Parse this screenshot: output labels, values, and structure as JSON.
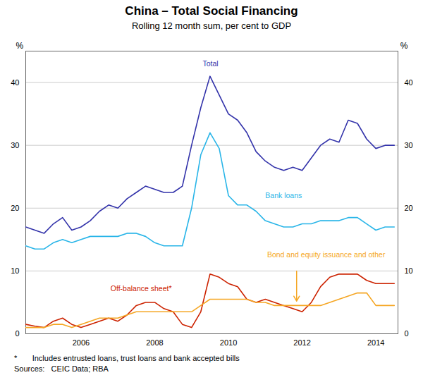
{
  "chart_data": {
    "type": "line",
    "title": "China – Total Social Financing",
    "subtitle": "Rolling 12 month sum, per cent to GDP",
    "ylabel": "%",
    "y2label": "%",
    "footnote": "*       Includes entrusted loans, trust loans and bank accepted bills",
    "sources": "Sources:   CEIC Data; RBA",
    "xlim": [
      2004.5,
      2014.6
    ],
    "xticks": [
      2006,
      2008,
      2010,
      2012,
      2014
    ],
    "ylim": [
      0,
      45
    ],
    "yticks": [
      0,
      10,
      20,
      30,
      40
    ],
    "y2lim": [
      0,
      45
    ],
    "y2ticks": [
      0,
      10,
      20,
      30,
      40
    ],
    "grid": true,
    "x": [
      2004.5,
      2004.75,
      2005.0,
      2005.25,
      2005.5,
      2005.75,
      2006.0,
      2006.25,
      2006.5,
      2006.75,
      2007.0,
      2007.25,
      2007.5,
      2007.75,
      2008.0,
      2008.25,
      2008.5,
      2008.75,
      2009.0,
      2009.25,
      2009.5,
      2009.75,
      2010.0,
      2010.25,
      2010.5,
      2010.75,
      2011.0,
      2011.25,
      2011.5,
      2011.75,
      2012.0,
      2012.25,
      2012.5,
      2012.75,
      2013.0,
      2013.25,
      2013.5,
      2013.75,
      2014.0,
      2014.25,
      2014.5
    ],
    "series": [
      {
        "name": "Total",
        "color": "#3333aa",
        "values": [
          17.0,
          16.5,
          16.0,
          17.5,
          18.5,
          16.5,
          17.0,
          18.0,
          19.5,
          20.5,
          20.0,
          21.5,
          22.5,
          23.5,
          23.0,
          22.5,
          22.5,
          23.5,
          30.0,
          36.0,
          41.0,
          38.0,
          35.0,
          34.0,
          32.0,
          29.0,
          27.5,
          26.5,
          26.0,
          26.5,
          26.0,
          28.0,
          30.0,
          31.0,
          30.5,
          34.0,
          33.5,
          31.0,
          29.5,
          30.0,
          30.0
        ]
      },
      {
        "name": "Bank loans",
        "color": "#29b5e8",
        "values": [
          14.0,
          13.5,
          13.5,
          14.5,
          15.0,
          14.5,
          15.0,
          15.5,
          15.5,
          15.5,
          15.5,
          16.0,
          16.0,
          15.5,
          14.5,
          14.0,
          14.0,
          14.0,
          20.0,
          28.5,
          32.0,
          29.5,
          22.0,
          20.5,
          20.5,
          19.5,
          18.0,
          17.5,
          17.0,
          17.0,
          17.5,
          17.5,
          18.0,
          18.0,
          18.0,
          18.5,
          18.5,
          17.5,
          16.5,
          17.0,
          17.0
        ]
      },
      {
        "name": "Off-balance sheet*",
        "color": "#cc2200",
        "values": [
          1.5,
          1.2,
          1.0,
          2.0,
          2.5,
          1.5,
          1.0,
          1.5,
          2.0,
          2.5,
          2.0,
          3.0,
          4.5,
          5.0,
          5.0,
          4.0,
          3.5,
          1.5,
          1.0,
          3.5,
          9.5,
          9.0,
          8.0,
          7.5,
          5.5,
          5.0,
          5.5,
          5.0,
          4.5,
          4.0,
          3.5,
          5.0,
          7.5,
          9.0,
          9.5,
          9.5,
          9.5,
          8.5,
          8.0,
          8.0,
          8.0
        ]
      },
      {
        "name": "Bond and equity issuance and other",
        "color": "#f5a623",
        "values": [
          1.0,
          1.0,
          1.0,
          1.5,
          1.5,
          1.0,
          1.5,
          2.0,
          2.5,
          2.5,
          2.5,
          3.0,
          3.5,
          3.5,
          3.5,
          3.5,
          3.5,
          3.5,
          3.5,
          4.5,
          5.5,
          5.5,
          5.5,
          5.5,
          5.5,
          5.0,
          5.0,
          4.5,
          4.5,
          4.5,
          4.5,
          4.5,
          4.5,
          5.0,
          5.5,
          6.0,
          6.5,
          6.5,
          4.5,
          4.5,
          4.5
        ]
      }
    ],
    "annotations": [
      {
        "text": "Total",
        "x": 2009.3,
        "y": 43.0,
        "color": "#3333aa"
      },
      {
        "text": "Bank loans",
        "x": 2011.0,
        "y": 22.0,
        "color": "#29b5e8"
      },
      {
        "text": "Bond and equity issuance and other",
        "x": 2011.05,
        "y": 12.5,
        "color": "#f5a623"
      },
      {
        "text": "Off-balance sheet*",
        "x": 2006.8,
        "y": 7.2,
        "color": "#cc2200"
      }
    ],
    "arrows": [
      {
        "x": 2011.85,
        "y_start": 10.0,
        "y_end": 5.2,
        "color": "#f5a623"
      }
    ]
  }
}
